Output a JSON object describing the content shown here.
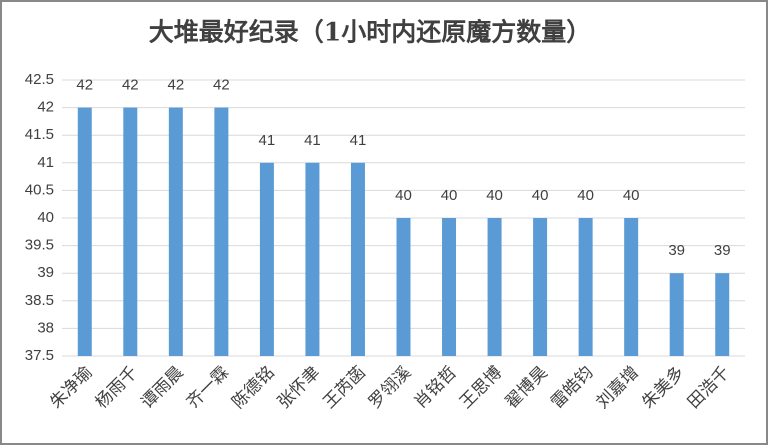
{
  "chart_data": {
    "type": "bar",
    "title": "大堆最好纪录（1小时内还原魔方数量）",
    "categories": [
      "朱净瑜",
      "杨雨千",
      "谭雨晨",
      "齐一霖",
      "陈德铭",
      "张怀聿",
      "王芮菡",
      "罗翎溪",
      "肖铭哲",
      "王思博",
      "翟博昊",
      "雷皓钧",
      "刘嘉增",
      "朱美多",
      "田浩千"
    ],
    "values": [
      42,
      42,
      42,
      42,
      41,
      41,
      41,
      40,
      40,
      40,
      40,
      40,
      40,
      39,
      39
    ],
    "color": "#5b9bd5",
    "ylim": [
      37.5,
      42.5
    ],
    "yticks": [
      37.5,
      38,
      38.5,
      39,
      39.5,
      40,
      40.5,
      41,
      41.5,
      42,
      42.5
    ],
    "grid": true
  }
}
